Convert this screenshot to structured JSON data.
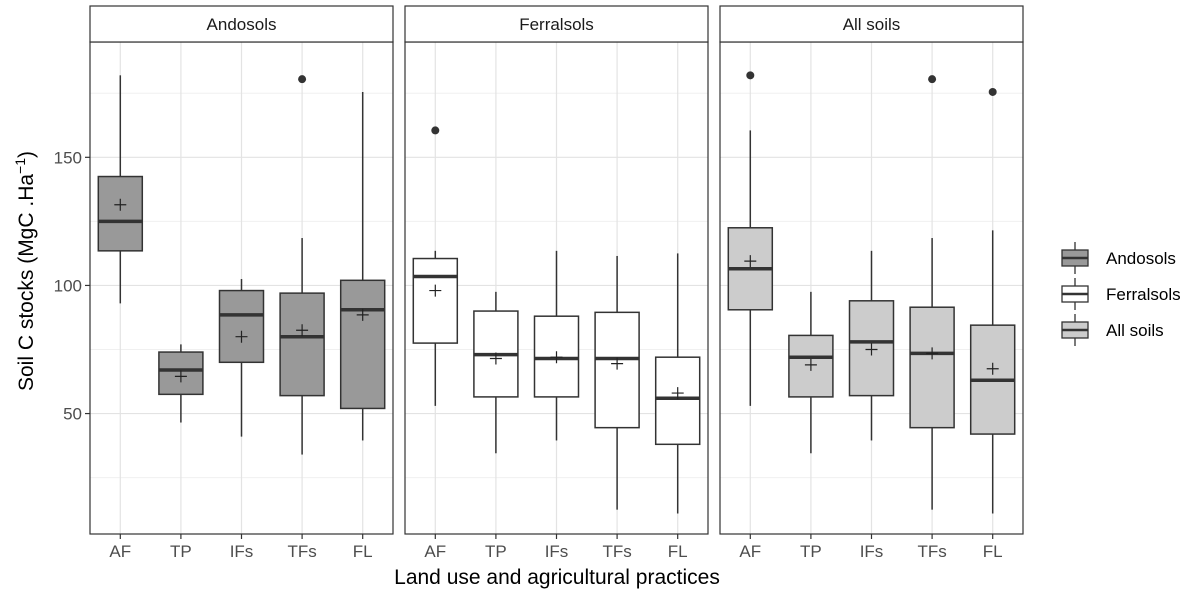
{
  "chart_data": {
    "type": "boxplot",
    "xlabel": "Land use and agricultural practices",
    "ylabel_main": "Soil C stocks (MgC .Ha",
    "ylabel_sup": "−1",
    "ylabel_end": ")",
    "ylim": [
      3,
      195
    ],
    "yticks": [
      50,
      100,
      150
    ],
    "grid": true,
    "legend_placement": "right",
    "categories": [
      "AF",
      "TP",
      "IFs",
      "TFs",
      "FL"
    ],
    "legend": [
      {
        "name": "Andosols",
        "color": "#999999"
      },
      {
        "name": "Ferralsols",
        "color": "#ffffff"
      },
      {
        "name": "All soils",
        "color": "#cccccc"
      }
    ],
    "panels": [
      {
        "title": "Andosols",
        "fill": "#999999",
        "boxes": [
          {
            "cat": "AF",
            "low": 93,
            "q1": 113.5,
            "median": 125,
            "q3": 142.5,
            "high": 182,
            "mean": 131.5,
            "outliers": []
          },
          {
            "cat": "TP",
            "low": 46.5,
            "q1": 57.5,
            "median": 67,
            "q3": 74,
            "high": 77,
            "mean": 64.5,
            "outliers": []
          },
          {
            "cat": "IFs",
            "low": 41,
            "q1": 70,
            "median": 88.5,
            "q3": 98,
            "high": 102.5,
            "mean": 80,
            "outliers": []
          },
          {
            "cat": "TFs",
            "low": 34,
            "q1": 57,
            "median": 80,
            "q3": 97,
            "high": 118.5,
            "mean": 82.5,
            "outliers": [
              180.5
            ]
          },
          {
            "cat": "FL",
            "low": 39.5,
            "q1": 52,
            "median": 90.5,
            "q3": 102,
            "high": 175.5,
            "mean": 88.5,
            "outliers": []
          }
        ]
      },
      {
        "title": "Ferralsols",
        "fill": "#ffffff",
        "boxes": [
          {
            "cat": "AF",
            "low": 53,
            "q1": 77.5,
            "median": 103.5,
            "q3": 110.5,
            "high": 113.5,
            "mean": 98,
            "outliers": [
              160.5
            ]
          },
          {
            "cat": "TP",
            "low": 34.5,
            "q1": 56.5,
            "median": 73,
            "q3": 90,
            "high": 97.5,
            "mean": 71.5,
            "outliers": []
          },
          {
            "cat": "IFs",
            "low": 39.5,
            "q1": 56.5,
            "median": 71.5,
            "q3": 88,
            "high": 113.5,
            "mean": 72,
            "outliers": []
          },
          {
            "cat": "TFs",
            "low": 12.5,
            "q1": 44.5,
            "median": 71.5,
            "q3": 89.5,
            "high": 111.5,
            "mean": 69.5,
            "outliers": []
          },
          {
            "cat": "FL",
            "low": 11,
            "q1": 38,
            "median": 56,
            "q3": 72,
            "high": 112.5,
            "mean": 58,
            "outliers": []
          }
        ]
      },
      {
        "title": "All soils",
        "fill": "#cccccc",
        "boxes": [
          {
            "cat": "AF",
            "low": 53,
            "q1": 90.5,
            "median": 106.5,
            "q3": 122.5,
            "high": 160.5,
            "mean": 109.5,
            "outliers": [
              182
            ]
          },
          {
            "cat": "TP",
            "low": 34.5,
            "q1": 56.5,
            "median": 72,
            "q3": 80.5,
            "high": 97.5,
            "mean": 69,
            "outliers": []
          },
          {
            "cat": "IFs",
            "low": 39.5,
            "q1": 57,
            "median": 78,
            "q3": 94,
            "high": 113.5,
            "mean": 75,
            "outliers": []
          },
          {
            "cat": "TFs",
            "low": 12.5,
            "q1": 44.5,
            "median": 73.5,
            "q3": 91.5,
            "high": 118.5,
            "mean": 73.5,
            "outliers": [
              180.5
            ]
          },
          {
            "cat": "FL",
            "low": 11,
            "q1": 42,
            "median": 63,
            "q3": 84.5,
            "high": 121.5,
            "mean": 67.5,
            "outliers": [
              175.5
            ]
          }
        ]
      }
    ]
  }
}
